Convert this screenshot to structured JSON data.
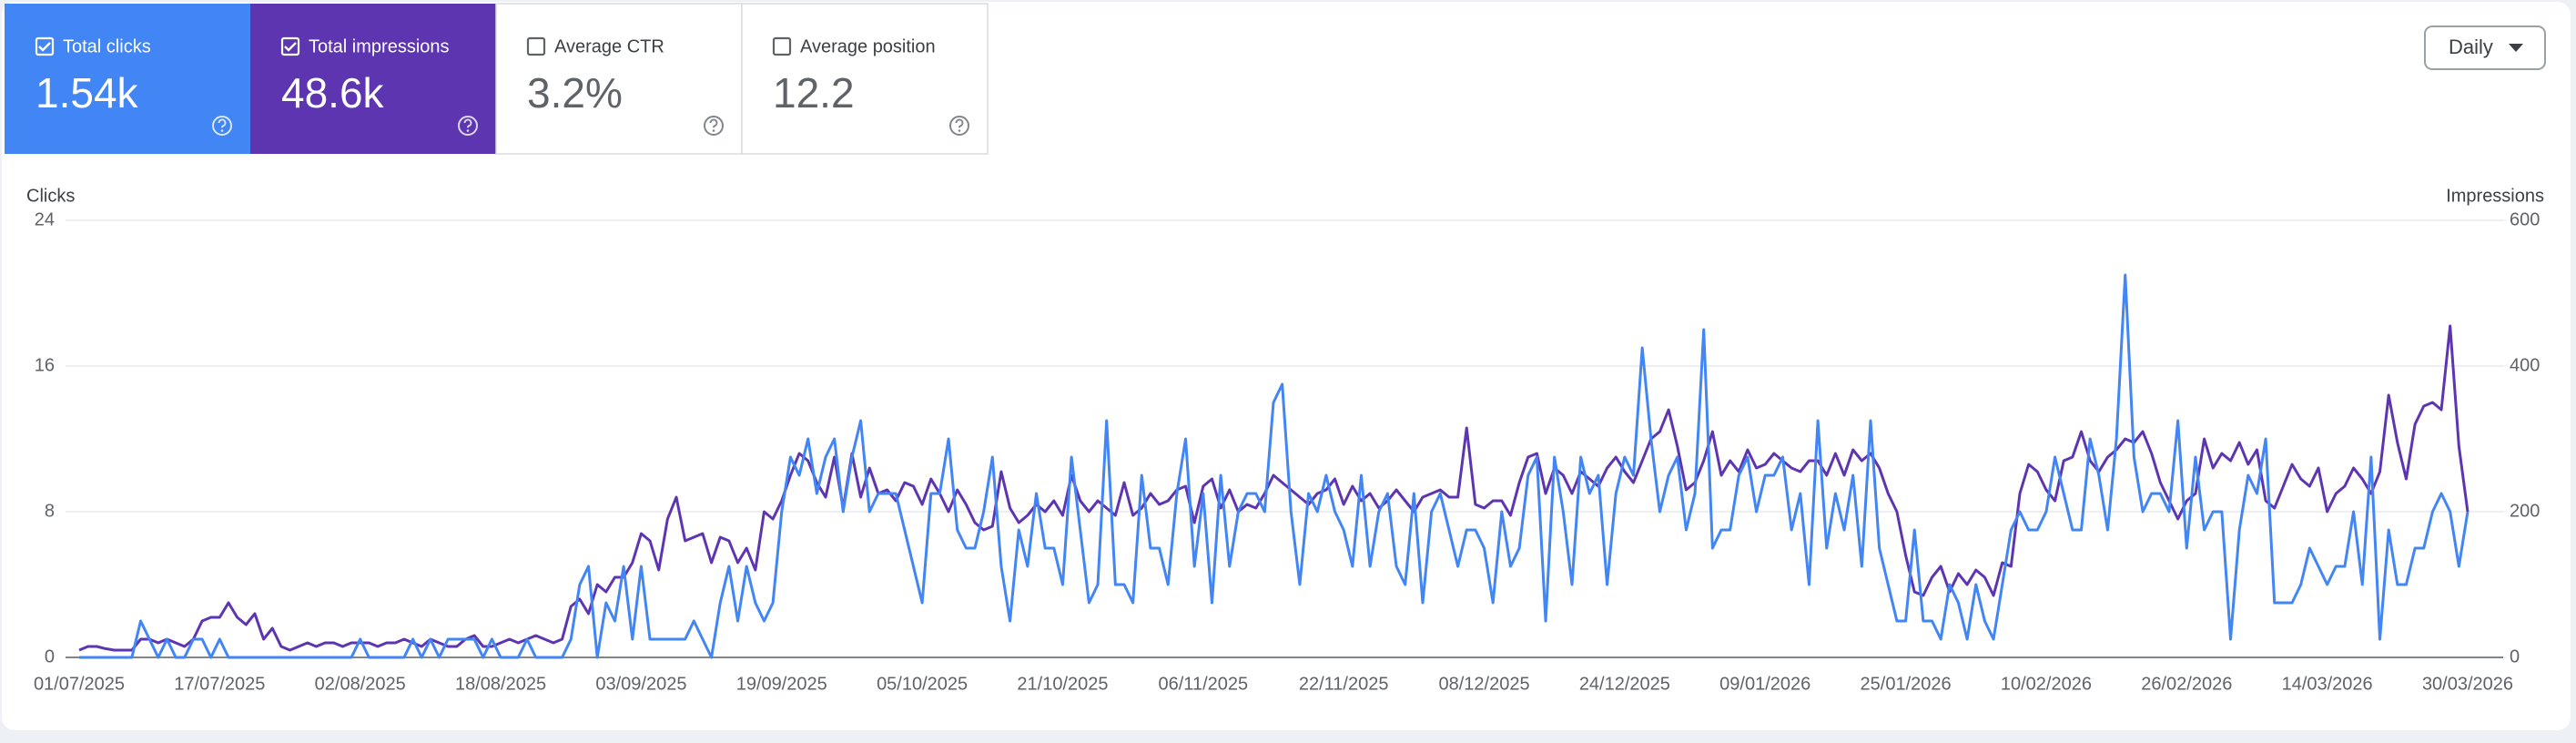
{
  "metrics": [
    {
      "label": "Total clicks",
      "value": "1.54k",
      "checked": true,
      "color": "#4285f4"
    },
    {
      "label": "Total impressions",
      "value": "48.6k",
      "checked": true,
      "color": "#5e35b1"
    },
    {
      "label": "Average CTR",
      "value": "3.2%",
      "checked": false,
      "color": "#ffffff"
    },
    {
      "label": "Average position",
      "value": "12.2",
      "checked": false,
      "color": "#ffffff"
    }
  ],
  "period": "Daily",
  "chart_data": {
    "type": "line",
    "ylabel": "Clicks",
    "y2label": "Impressions",
    "ylim": [
      0,
      24
    ],
    "yticks": [
      0,
      8,
      16,
      24
    ],
    "y2lim": [
      0,
      600
    ],
    "y2ticks": [
      0,
      200,
      400,
      600
    ],
    "grid": true,
    "categories": [
      "01/07/2025",
      null,
      null,
      null,
      null,
      null,
      null,
      null,
      null,
      null,
      null,
      null,
      null,
      null,
      null,
      null,
      "17/07/2025",
      null,
      null,
      null,
      null,
      null,
      null,
      null,
      null,
      null,
      null,
      null,
      null,
      null,
      null,
      null,
      "02/08/2025",
      null,
      null,
      null,
      null,
      null,
      null,
      null,
      null,
      null,
      null,
      null,
      null,
      null,
      null,
      null,
      "18/08/2025",
      null,
      null,
      null,
      null,
      null,
      null,
      null,
      null,
      null,
      null,
      null,
      null,
      null,
      null,
      null,
      "03/09/2025",
      null,
      null,
      null,
      null,
      null,
      null,
      null,
      null,
      null,
      null,
      null,
      null,
      null,
      null,
      null,
      "19/09/2025",
      null,
      null,
      null,
      null,
      null,
      null,
      null,
      null,
      null,
      null,
      null,
      null,
      null,
      null,
      null,
      "05/10/2025",
      null,
      null,
      null,
      null,
      null,
      null,
      null,
      null,
      null,
      null,
      null,
      null,
      null,
      null,
      null,
      "21/10/2025",
      null,
      null,
      null,
      null,
      null,
      null,
      null,
      null,
      null,
      null,
      null,
      null,
      null,
      null,
      null,
      "06/11/2025",
      null,
      null,
      null,
      null,
      null,
      null,
      null,
      null,
      null,
      null,
      null,
      null,
      null,
      null,
      null,
      "22/11/2025",
      null,
      null,
      null,
      null,
      null,
      null,
      null,
      null,
      null,
      null,
      null,
      null,
      null,
      null,
      null,
      "08/12/2025",
      null,
      null,
      null,
      null,
      null,
      null,
      null,
      null,
      null,
      null,
      null,
      null,
      null,
      null,
      null,
      "24/12/2025",
      null,
      null,
      null,
      null,
      null,
      null,
      null,
      null,
      null,
      null,
      null,
      null,
      null,
      null,
      null,
      "09/01/2026",
      null,
      null,
      null,
      null,
      null,
      null,
      null,
      null,
      null,
      null,
      null,
      null,
      null,
      null,
      null,
      "25/01/2026",
      null,
      null,
      null,
      null,
      null,
      null,
      null,
      null,
      null,
      null,
      null,
      null,
      null,
      null,
      null,
      "10/02/2026",
      null,
      null,
      null,
      null,
      null,
      null,
      null,
      null,
      null,
      null,
      null,
      null,
      null,
      null,
      null,
      "26/02/2026",
      null,
      null,
      null,
      null,
      null,
      null,
      null,
      null,
      null,
      null,
      null,
      null,
      null,
      null,
      null,
      "14/03/2026",
      null,
      null,
      null,
      null,
      null,
      null,
      null,
      null,
      null,
      null,
      null,
      null,
      null,
      null,
      null,
      "30/03/2026"
    ],
    "series": [
      {
        "color": "#4285f4",
        "values": [
          0,
          0,
          0,
          0,
          0,
          0,
          0,
          2,
          1,
          0,
          1,
          0,
          0,
          1,
          1,
          0,
          1,
          0,
          0,
          0,
          0,
          0,
          0,
          0,
          0,
          0,
          0,
          0,
          0,
          0,
          0,
          0,
          1,
          0,
          0,
          0,
          0,
          0,
          1,
          0,
          1,
          0,
          1,
          1,
          1,
          1,
          0,
          1,
          0,
          0,
          0,
          1,
          0,
          0,
          0,
          0,
          1,
          4,
          5,
          0,
          3,
          2,
          5,
          1,
          5,
          1,
          1,
          1,
          1,
          1,
          2,
          1,
          0,
          3,
          5,
          2,
          5,
          3,
          2,
          3,
          8,
          11,
          10,
          12,
          9,
          11,
          12,
          8,
          11,
          13,
          8,
          9,
          9,
          9,
          7,
          5,
          3,
          9,
          9,
          12,
          7,
          6,
          6,
          8,
          11,
          5,
          2,
          7,
          5,
          9,
          6,
          6,
          4,
          11,
          7,
          3,
          4,
          13,
          4,
          4,
          3,
          10,
          6,
          6,
          4,
          9,
          12,
          5,
          9,
          3,
          10,
          5,
          8,
          9,
          9,
          8,
          14,
          15,
          8,
          4,
          9,
          8,
          10,
          8,
          7,
          5,
          10,
          5,
          8,
          9,
          5,
          4,
          9,
          3,
          8,
          9,
          7,
          5,
          7,
          7,
          6,
          3,
          8,
          5,
          6,
          10,
          11,
          2,
          11,
          8,
          4,
          11,
          9,
          10,
          4,
          9,
          11,
          10,
          17,
          12,
          8,
          10,
          11,
          7,
          9,
          18,
          6,
          7,
          7,
          10,
          11,
          8,
          10,
          10,
          11,
          7,
          9,
          4,
          13,
          6,
          9,
          7,
          10,
          5,
          13,
          6,
          4,
          2,
          2,
          7,
          2,
          2,
          1,
          4,
          3,
          1,
          4,
          2,
          1,
          4,
          7,
          8,
          7,
          7,
          8,
          11,
          9,
          7,
          7,
          12,
          10,
          7,
          12,
          21,
          11,
          8,
          9,
          9,
          8,
          13,
          6,
          11,
          7,
          8,
          8,
          1,
          7,
          10,
          9,
          12,
          3,
          3,
          3,
          4,
          6,
          5,
          4,
          5,
          5,
          8,
          4,
          11,
          1,
          7,
          4,
          4,
          6,
          6,
          8,
          9,
          8,
          5,
          8
        ]
      },
      {
        "color": "#5e35b1",
        "axis": "y2",
        "values": [
          10,
          15,
          15,
          12,
          10,
          10,
          10,
          25,
          25,
          20,
          25,
          20,
          15,
          25,
          50,
          55,
          55,
          75,
          55,
          45,
          60,
          25,
          40,
          15,
          10,
          15,
          20,
          15,
          20,
          20,
          15,
          20,
          20,
          20,
          15,
          20,
          20,
          25,
          20,
          15,
          25,
          20,
          15,
          15,
          25,
          30,
          15,
          15,
          20,
          25,
          20,
          25,
          30,
          25,
          20,
          25,
          70,
          80,
          60,
          100,
          90,
          110,
          110,
          130,
          170,
          160,
          120,
          190,
          220,
          160,
          165,
          170,
          130,
          165,
          160,
          130,
          150,
          120,
          200,
          190,
          215,
          250,
          280,
          270,
          240,
          220,
          275,
          205,
          280,
          220,
          260,
          225,
          230,
          215,
          240,
          235,
          210,
          245,
          225,
          200,
          230,
          210,
          185,
          175,
          180,
          255,
          205,
          185,
          195,
          210,
          200,
          215,
          195,
          250,
          215,
          200,
          215,
          205,
          195,
          240,
          195,
          205,
          225,
          210,
          215,
          230,
          235,
          185,
          235,
          245,
          205,
          230,
          200,
          210,
          205,
          225,
          250,
          240,
          230,
          220,
          210,
          225,
          230,
          245,
          210,
          235,
          215,
          225,
          205,
          215,
          230,
          215,
          200,
          220,
          225,
          230,
          220,
          220,
          315,
          210,
          205,
          215,
          215,
          195,
          240,
          275,
          280,
          225,
          260,
          250,
          225,
          255,
          245,
          235,
          260,
          275,
          255,
          240,
          270,
          300,
          310,
          340,
          290,
          230,
          240,
          270,
          310,
          250,
          270,
          255,
          285,
          260,
          265,
          280,
          270,
          260,
          255,
          270,
          270,
          250,
          280,
          250,
          285,
          270,
          280,
          260,
          225,
          200,
          140,
          90,
          85,
          110,
          125,
          90,
          115,
          100,
          120,
          110,
          85,
          130,
          125,
          225,
          265,
          255,
          230,
          215,
          270,
          275,
          310,
          270,
          255,
          275,
          285,
          300,
          295,
          310,
          280,
          240,
          215,
          190,
          215,
          225,
          300,
          260,
          280,
          270,
          295,
          265,
          285,
          215,
          205,
          235,
          265,
          245,
          235,
          260,
          200,
          225,
          235,
          260,
          245,
          225,
          255,
          360,
          295,
          245,
          320,
          345,
          350,
          340,
          455,
          290,
          200
        ]
      }
    ]
  }
}
